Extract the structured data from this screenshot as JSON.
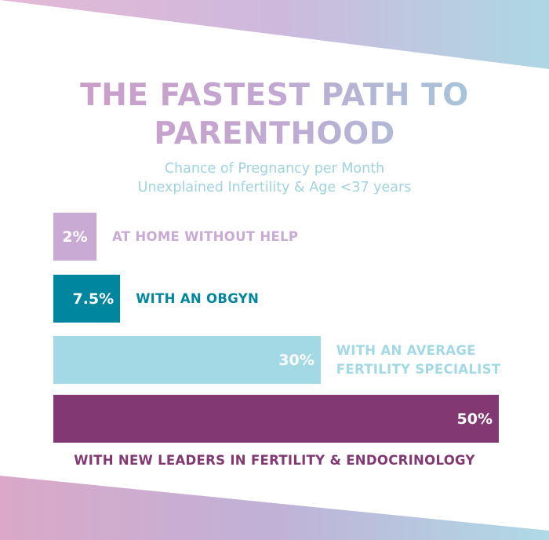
{
  "title": {
    "line1": "THE FASTEST PATH TO",
    "line2": "PARENTHOOD"
  },
  "subtitle": {
    "line1": "Chance of Pregnancy per Month",
    "line2": "Unexplained Infertility & Age <37 years"
  },
  "colors": {
    "bar_home": "#c9aad5",
    "bar_obgyn": "#00869e",
    "bar_average": "#a3d9e4",
    "bar_leaders": "#823872",
    "decor_pink": "#d9a6cb",
    "decor_blue": "#a8d6e2"
  },
  "chart_data": {
    "type": "bar",
    "orientation": "horizontal",
    "title": "THE FASTEST PATH TO PARENTHOOD",
    "subtitle": "Chance of Pregnancy per Month Unexplained Infertility & Age <37 years",
    "categories": [
      "AT HOME WITHOUT HELP",
      "WITH AN OBGYN",
      "WITH AN AVERAGE FERTILITY SPECIALIST",
      "WITH NEW LEADERS IN FERTILITY & ENDOCRINOLOGY"
    ],
    "values": [
      2,
      7.5,
      30,
      50
    ],
    "value_labels": [
      "2%",
      "7.5%",
      "30%",
      "50%"
    ],
    "bars": [
      {
        "value": 2,
        "value_label": "2%",
        "label_lines": [
          "AT HOME WITHOUT HELP"
        ],
        "color": "#c9aad5",
        "label_color": "#c9aad5"
      },
      {
        "value": 7.5,
        "value_label": "7.5%",
        "label_lines": [
          "WITH AN OBGYN"
        ],
        "color": "#00869e",
        "label_color": "#00869e"
      },
      {
        "value": 30,
        "value_label": "30%",
        "label_lines": [
          "WITH AN AVERAGE",
          "FERTILITY SPECIALIST"
        ],
        "color": "#a3d9e4",
        "label_color": "#a3d9e4"
      },
      {
        "value": 50,
        "value_label": "50%",
        "label_lines": [
          "WITH NEW LEADERS IN FERTILITY & ENDOCRINOLOGY"
        ],
        "color": "#823872",
        "label_color": "#823872"
      }
    ],
    "xlabel": "",
    "ylabel": "",
    "grid": false,
    "legend": "none"
  }
}
